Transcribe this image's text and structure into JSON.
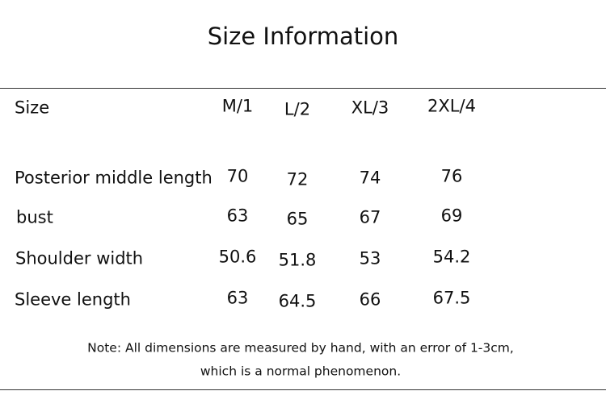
{
  "header": {
    "title": "Size Information"
  },
  "table": {
    "columns": [
      "Size",
      "M/1",
      "L/2",
      "XL/3",
      "2XL/4"
    ],
    "rows": [
      [
        "Posterior middle length",
        "70",
        "72",
        "74",
        "76"
      ],
      [
        "bust",
        "63",
        "65",
        "67",
        "69"
      ],
      [
        "Shoulder width",
        "50.6",
        "51.8",
        "53",
        "54.2"
      ],
      [
        "Sleeve length",
        "63",
        "64.5",
        "66",
        "67.5"
      ]
    ]
  },
  "note": {
    "lines": [
      "Note: All dimensions are measured by hand, with an error of 1-3cm,",
      "which is a normal phenomenon."
    ]
  }
}
